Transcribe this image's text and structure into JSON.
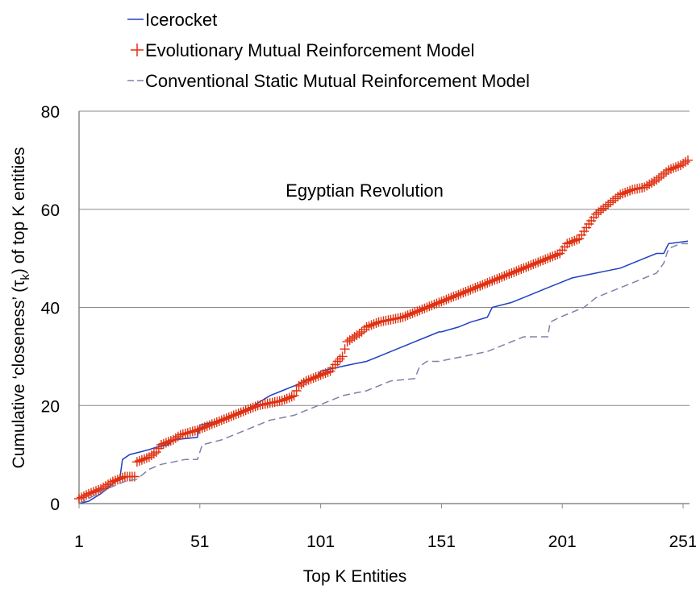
{
  "chart_data": {
    "type": "line",
    "title": "",
    "annotation": "Egyptian Revolution",
    "xlabel": "Top K Entities",
    "ylabel_prefix": "Cumulative ‘closeness’ (τ",
    "ylabel_sub": "k",
    "ylabel_suffix": ") of top K entities",
    "xlim": [
      1,
      253
    ],
    "ylim": [
      0,
      80
    ],
    "x_ticks": [
      "1",
      "51",
      "101",
      "151",
      "201",
      "251"
    ],
    "x_tick_values": [
      1,
      51,
      101,
      151,
      201,
      251
    ],
    "y_ticks": [
      "0",
      "20",
      "40",
      "60",
      "80"
    ],
    "y_tick_values": [
      0,
      20,
      40,
      60,
      80
    ],
    "grid": "horizontal",
    "legend_position": "top-left",
    "series": [
      {
        "name": "Icerocket",
        "style": "solid",
        "color": "#2040c0",
        "points": [
          [
            1,
            0
          ],
          [
            5,
            0.5
          ],
          [
            10,
            2
          ],
          [
            15,
            4
          ],
          [
            18,
            5.5
          ],
          [
            19,
            9
          ],
          [
            22,
            10
          ],
          [
            26,
            10.5
          ],
          [
            30,
            11
          ],
          [
            33,
            11.5
          ],
          [
            38,
            12
          ],
          [
            40,
            13
          ],
          [
            50,
            13.5
          ],
          [
            51,
            16
          ],
          [
            60,
            17
          ],
          [
            70,
            19
          ],
          [
            80,
            22
          ],
          [
            85,
            23
          ],
          [
            90,
            24
          ],
          [
            95,
            25
          ],
          [
            100,
            26
          ],
          [
            101,
            27
          ],
          [
            110,
            28
          ],
          [
            115,
            28.5
          ],
          [
            120,
            29
          ],
          [
            125,
            30
          ],
          [
            130,
            31
          ],
          [
            135,
            32
          ],
          [
            140,
            33
          ],
          [
            145,
            34
          ],
          [
            150,
            35
          ],
          [
            151,
            35
          ],
          [
            158,
            36
          ],
          [
            163,
            37
          ],
          [
            170,
            38
          ],
          [
            172,
            40
          ],
          [
            180,
            41
          ],
          [
            185,
            42
          ],
          [
            190,
            43
          ],
          [
            195,
            44
          ],
          [
            200,
            45
          ],
          [
            205,
            46
          ],
          [
            210,
            46.5
          ],
          [
            215,
            47
          ],
          [
            220,
            47.5
          ],
          [
            225,
            48
          ],
          [
            230,
            49
          ],
          [
            235,
            50
          ],
          [
            240,
            51
          ],
          [
            243,
            51
          ],
          [
            245,
            53
          ],
          [
            253,
            53.5
          ]
        ]
      },
      {
        "name": "Evolutionary Mutual Reinforcement Model",
        "style": "plus",
        "color": "#e03010",
        "points": [
          [
            1,
            1
          ],
          [
            5,
            2
          ],
          [
            10,
            3
          ],
          [
            15,
            4.5
          ],
          [
            20,
            5.5
          ],
          [
            24,
            5.5
          ],
          [
            25,
            8.5
          ],
          [
            30,
            9.5
          ],
          [
            33,
            10.5
          ],
          [
            35,
            12
          ],
          [
            40,
            13
          ],
          [
            43,
            14
          ],
          [
            50,
            15
          ],
          [
            55,
            16
          ],
          [
            60,
            17
          ],
          [
            65,
            18
          ],
          [
            70,
            19
          ],
          [
            75,
            20
          ],
          [
            80,
            20.5
          ],
          [
            85,
            21
          ],
          [
            90,
            22
          ],
          [
            92,
            24
          ],
          [
            95,
            25
          ],
          [
            100,
            26
          ],
          [
            105,
            27
          ],
          [
            108,
            29
          ],
          [
            110,
            30
          ],
          [
            112,
            33
          ],
          [
            118,
            35
          ],
          [
            120,
            36
          ],
          [
            125,
            37
          ],
          [
            130,
            37.5
          ],
          [
            135,
            38
          ],
          [
            140,
            39
          ],
          [
            145,
            40
          ],
          [
            150,
            41
          ],
          [
            155,
            42
          ],
          [
            160,
            43
          ],
          [
            165,
            44
          ],
          [
            170,
            45
          ],
          [
            175,
            46
          ],
          [
            180,
            47
          ],
          [
            185,
            48
          ],
          [
            190,
            49
          ],
          [
            195,
            50
          ],
          [
            200,
            51
          ],
          [
            203,
            53
          ],
          [
            208,
            54
          ],
          [
            212,
            57
          ],
          [
            215,
            59
          ],
          [
            220,
            61
          ],
          [
            225,
            63
          ],
          [
            230,
            64
          ],
          [
            235,
            64.5
          ],
          [
            240,
            66
          ],
          [
            245,
            68
          ],
          [
            250,
            69
          ],
          [
            253,
            70
          ]
        ]
      },
      {
        "name": "Conventional Static Mutual Reinforcement Model",
        "style": "dashed",
        "color": "#8080aa",
        "points": [
          [
            1,
            0
          ],
          [
            5,
            1
          ],
          [
            10,
            2.5
          ],
          [
            15,
            3.5
          ],
          [
            20,
            4.5
          ],
          [
            25,
            5
          ],
          [
            30,
            7
          ],
          [
            35,
            8
          ],
          [
            40,
            8.5
          ],
          [
            45,
            9
          ],
          [
            50,
            9
          ],
          [
            52,
            12
          ],
          [
            60,
            13
          ],
          [
            65,
            14
          ],
          [
            70,
            15
          ],
          [
            75,
            16
          ],
          [
            80,
            17
          ],
          [
            85,
            17.5
          ],
          [
            90,
            18
          ],
          [
            95,
            19
          ],
          [
            100,
            20
          ],
          [
            105,
            21
          ],
          [
            110,
            22
          ],
          [
            115,
            22.5
          ],
          [
            120,
            23
          ],
          [
            125,
            24
          ],
          [
            130,
            25
          ],
          [
            140,
            25.5
          ],
          [
            142,
            28
          ],
          [
            145,
            29
          ],
          [
            150,
            29
          ],
          [
            155,
            29.5
          ],
          [
            160,
            30
          ],
          [
            165,
            30.5
          ],
          [
            170,
            31
          ],
          [
            175,
            32
          ],
          [
            180,
            33
          ],
          [
            185,
            34
          ],
          [
            195,
            34
          ],
          [
            196,
            37
          ],
          [
            200,
            38
          ],
          [
            205,
            39
          ],
          [
            210,
            40
          ],
          [
            215,
            42
          ],
          [
            220,
            43
          ],
          [
            225,
            44
          ],
          [
            230,
            45
          ],
          [
            235,
            46
          ],
          [
            240,
            47
          ],
          [
            243,
            49
          ],
          [
            245,
            52
          ],
          [
            250,
            53
          ],
          [
            253,
            53
          ]
        ]
      }
    ]
  }
}
